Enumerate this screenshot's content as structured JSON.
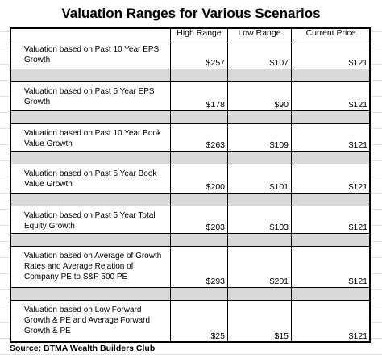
{
  "title": "Valuation Ranges for Various Scenarios",
  "table": {
    "header": [
      "High Range",
      "Low Range",
      "Current Price"
    ],
    "rows": [
      [
        "Valuation based on Past 10 Year EPS Growth",
        "$257",
        "$107",
        "$121"
      ],
      [
        "Valuation based on Past 5 Year EPS Growth",
        "$178",
        "$90",
        "$121"
      ],
      [
        "Valuation based on Past 10 Year Book Value Growth",
        "$263",
        "$109",
        "$121"
      ],
      [
        "Valuation based on Past 5 Year Book Value Growth",
        "$200",
        "$101",
        "$121"
      ],
      [
        "Valuation based on Past 5 Year Total Equity Growth",
        "$203",
        "$103",
        "$121"
      ],
      [
        "Valuation based on Average of Growth Rates and Average Relation of Company PE to S&P 500 PE",
        "$293",
        "$201",
        "$121"
      ],
      [
        "Valuation based on Low Forward Growth & PE and Average Forward Growth & PE",
        "$25",
        "$15",
        "$121"
      ]
    ]
  },
  "source": "Source: BTMA Wealth Builders Club"
}
